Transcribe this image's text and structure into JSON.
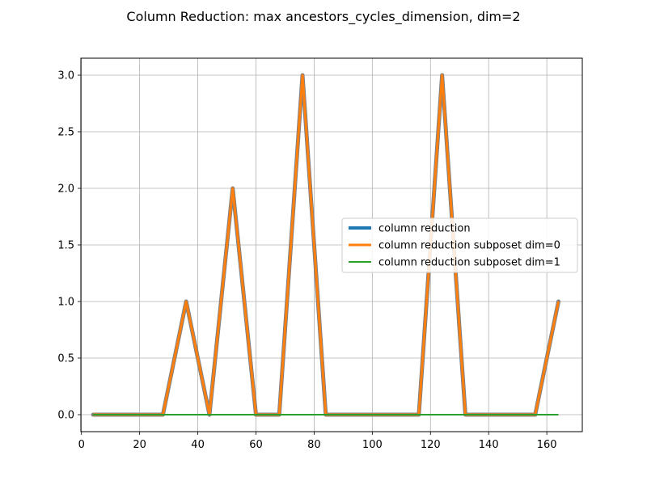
{
  "chart_data": {
    "type": "line",
    "title": "Column Reduction: max ancestors_cycles_dimension, dim=2",
    "xlabel": "",
    "ylabel": "",
    "xlim": [
      -0.2,
      172.2
    ],
    "ylim": [
      -0.15,
      3.15
    ],
    "x_ticks": [
      0,
      20,
      40,
      60,
      80,
      100,
      120,
      140,
      160
    ],
    "y_ticks": [
      0.0,
      0.5,
      1.0,
      1.5,
      2.0,
      2.5,
      3.0
    ],
    "x_tick_labels": [
      "0",
      "20",
      "40",
      "60",
      "80",
      "100",
      "120",
      "140",
      "160"
    ],
    "y_tick_labels": [
      "0.0",
      "0.5",
      "1.0",
      "1.5",
      "2.0",
      "2.5",
      "3.0"
    ],
    "grid": true,
    "legend_position": "center-right",
    "series": [
      {
        "name": "column reduction",
        "color": "#1f77b4",
        "x": [
          4,
          12,
          20,
          28,
          36,
          44,
          52,
          60,
          68,
          76,
          84,
          92,
          100,
          108,
          116,
          124,
          132,
          140,
          148,
          156,
          164
        ],
        "y": [
          0,
          0,
          0,
          0,
          1,
          0,
          2,
          0,
          0,
          3,
          0,
          0,
          0,
          0,
          0,
          3,
          0,
          0,
          0,
          0,
          1
        ]
      },
      {
        "name": "column reduction subposet dim=0",
        "color": "#ff7f0e",
        "x": [
          4,
          12,
          20,
          28,
          36,
          44,
          52,
          60,
          68,
          76,
          84,
          92,
          100,
          108,
          116,
          124,
          132,
          140,
          148,
          156,
          164
        ],
        "y": [
          0,
          0,
          0,
          0,
          1,
          0,
          2,
          0,
          0,
          3,
          0,
          0,
          0,
          0,
          0,
          3,
          0,
          0,
          0,
          0,
          1
        ]
      },
      {
        "name": "column reduction subposet dim=1",
        "color": "#2ca02c",
        "x": [
          4,
          12,
          20,
          28,
          36,
          44,
          52,
          60,
          68,
          76,
          84,
          92,
          100,
          108,
          116,
          124,
          132,
          140,
          148,
          156,
          164
        ],
        "y": [
          0,
          0,
          0,
          0,
          0,
          0,
          0,
          0,
          0,
          0,
          0,
          0,
          0,
          0,
          0,
          0,
          0,
          0,
          0,
          0,
          0
        ]
      }
    ]
  }
}
